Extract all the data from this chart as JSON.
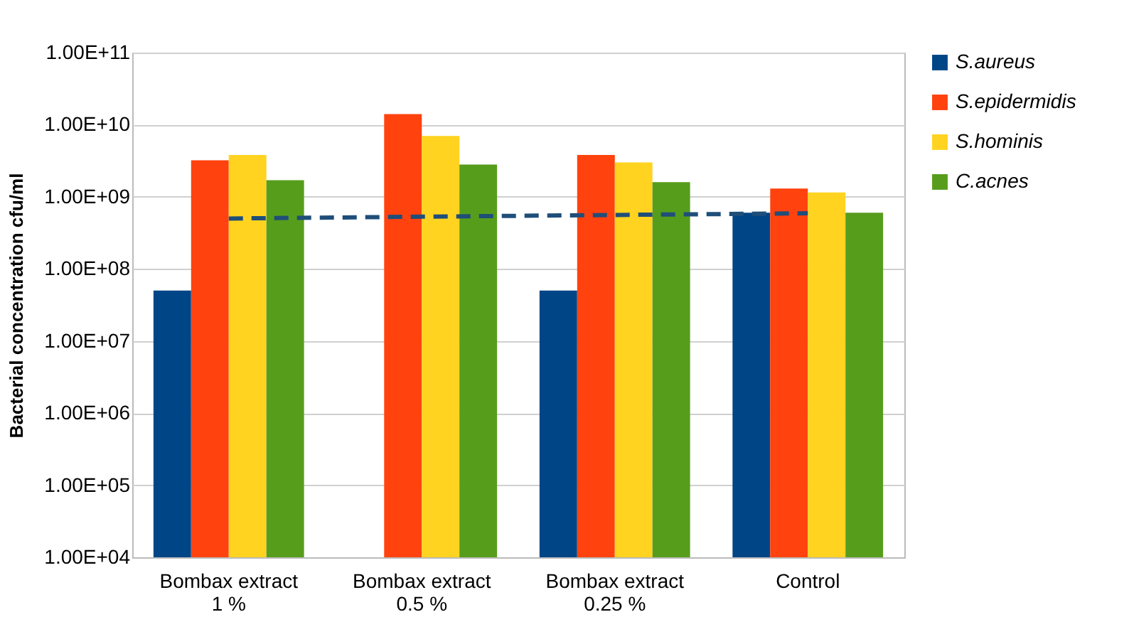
{
  "chart_data": {
    "type": "bar",
    "ylabel": "Bacterial concentration cfu/ml",
    "categories": [
      "Bombax extract\n1 %",
      "Bombax extract\n0.5 %",
      "Bombax extract\n0.25 %",
      "Control"
    ],
    "series": [
      {
        "name": "S.aureus",
        "color": "#004586",
        "values": [
          50000000.0,
          null,
          50000000.0,
          600000000.0
        ]
      },
      {
        "name": "S.epidermidis",
        "color": "#ff420e",
        "values": [
          3200000000.0,
          14000000000.0,
          3800000000.0,
          1300000000.0
        ]
      },
      {
        "name": "S.hominis",
        "color": "#ffd320",
        "values": [
          3800000000.0,
          7000000000.0,
          3000000000.0,
          1150000000.0
        ]
      },
      {
        "name": "C.acnes",
        "color": "#579d1c",
        "values": [
          1700000000.0,
          2800000000.0,
          1600000000.0,
          600000000.0
        ]
      },
      {
        "type": "line",
        "color": "#1f4e79",
        "line_style": "dashed",
        "marker": "none",
        "values": [
          500000000.0,
          530000000.0,
          560000000.0,
          590000000.0
        ]
      }
    ],
    "log": true,
    "ylim": [
      10000.0,
      100000000000.0
    ],
    "yticks": [
      {
        "value": 10000.0,
        "label": "1.00E+04"
      },
      {
        "value": 100000.0,
        "label": "1.00E+05"
      },
      {
        "value": 1000000.0,
        "label": "1.00E+06"
      },
      {
        "value": 10000000.0,
        "label": "1.00E+07"
      },
      {
        "value": 100000000.0,
        "label": "1.00E+08"
      },
      {
        "value": 1000000000.0,
        "label": "1.00E+09"
      },
      {
        "value": 10000000000.0,
        "label": "1.00E+10"
      },
      {
        "value": 100000000000.0,
        "label": "1.00E+11"
      }
    ],
    "grid": "y",
    "legend": "right"
  }
}
